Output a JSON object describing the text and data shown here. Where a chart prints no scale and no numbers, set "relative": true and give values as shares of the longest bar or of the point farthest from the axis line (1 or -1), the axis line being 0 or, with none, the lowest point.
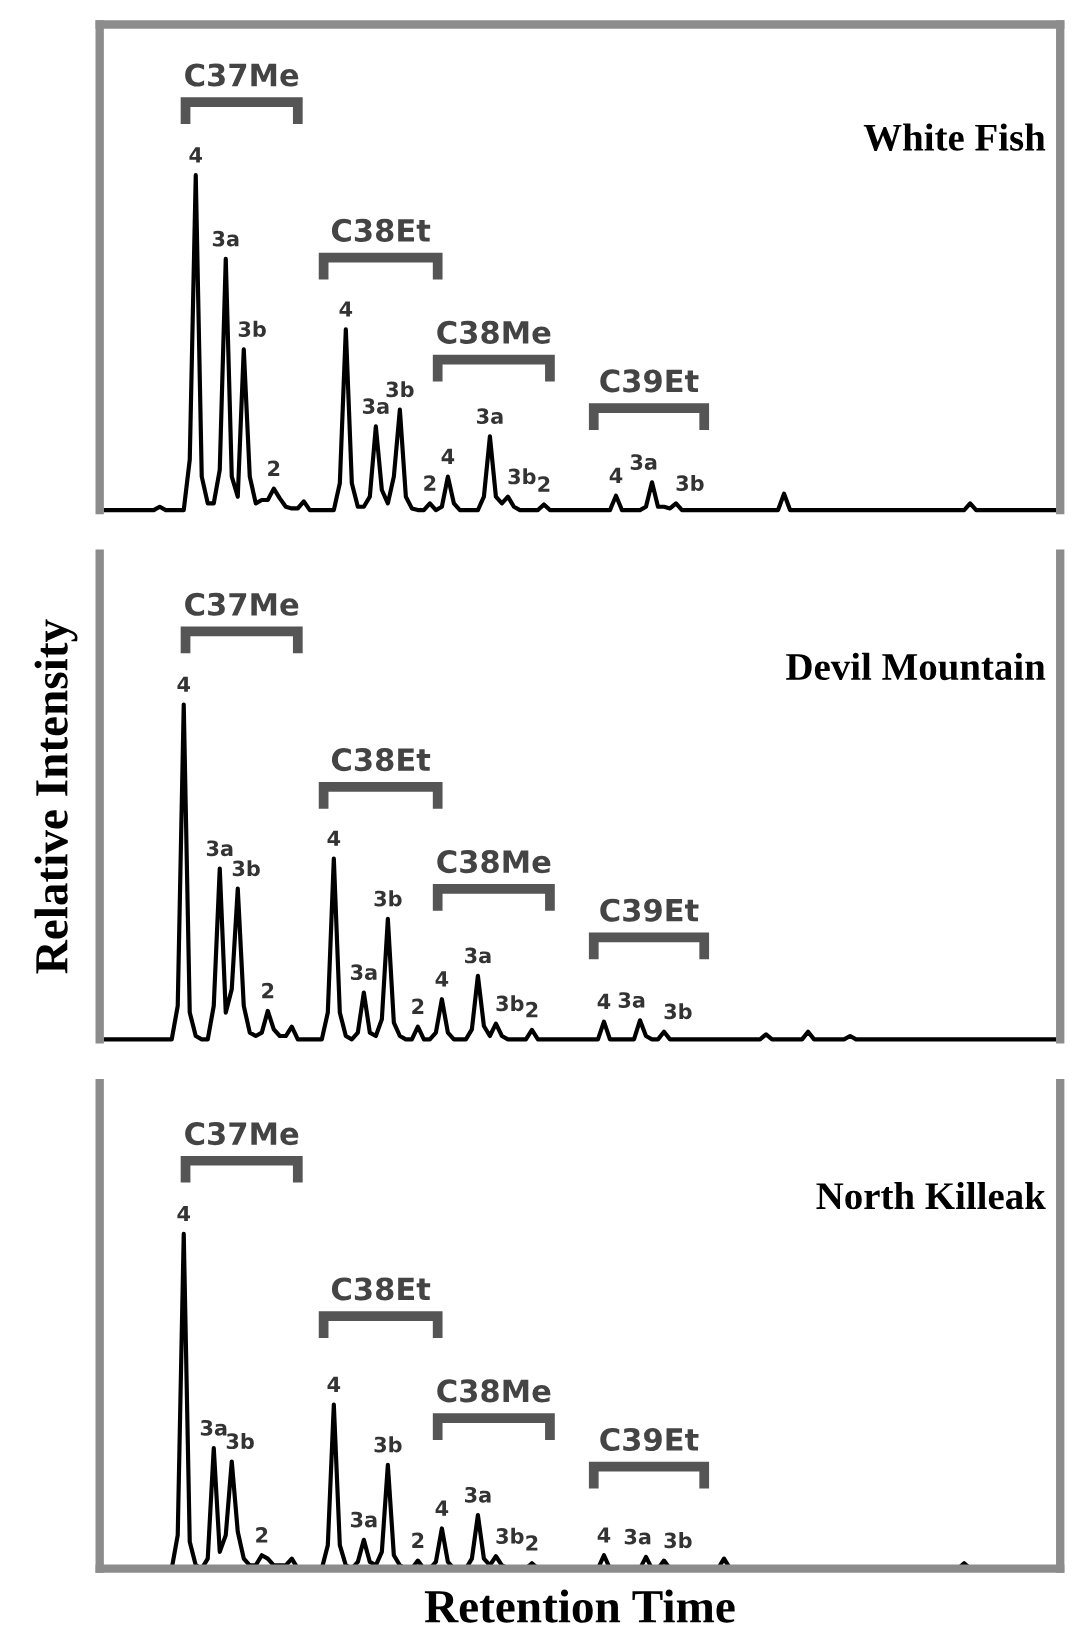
{
  "chart_data": [
    {
      "type": "line",
      "relative": true,
      "title": "White Fish",
      "categories": [
        null,
        null,
        null,
        null,
        null,
        null,
        null,
        null,
        null,
        null,
        null,
        null,
        null,
        null,
        null,
        null,
        null,
        null,
        null,
        null,
        null,
        null,
        null,
        null,
        null,
        null,
        null,
        null,
        null,
        null,
        null,
        null,
        null,
        null,
        null,
        null,
        null,
        null,
        null,
        null,
        null,
        null,
        null,
        null,
        null,
        null,
        null,
        null,
        null,
        null,
        null,
        null,
        null,
        null,
        null,
        null,
        null,
        null,
        null,
        null,
        null,
        null,
        null,
        null,
        null,
        null,
        null,
        null,
        null,
        null,
        null,
        null,
        null,
        null,
        null,
        null,
        null,
        null,
        null,
        null,
        null,
        null,
        null,
        null,
        null,
        null,
        null,
        null,
        null,
        null,
        null,
        null,
        null,
        null,
        null,
        null,
        null,
        null,
        null,
        null,
        null,
        null,
        null,
        null,
        null,
        null,
        null,
        null,
        null,
        null,
        null,
        null,
        null,
        null,
        null,
        null,
        null,
        null,
        null,
        null,
        null,
        null,
        null,
        null,
        null,
        null,
        null,
        null,
        null,
        null,
        null,
        null,
        null,
        null,
        null,
        null,
        null,
        null,
        null,
        null,
        null,
        null,
        null,
        null,
        null,
        null,
        null,
        null,
        null,
        null,
        null,
        null,
        null,
        null,
        null,
        null,
        null,
        null,
        null
      ],
      "series": [
        {
          "color": "#000000",
          "values": [
            0,
            0,
            0,
            0,
            0,
            0,
            0,
            0,
            0,
            0.01,
            0,
            0,
            0,
            0,
            0.15,
            1,
            0.1,
            0.02,
            0.02,
            0.12,
            0.75,
            0.1,
            0.04,
            0.48,
            0.1,
            0.02,
            0.03,
            0.03,
            0.064,
            0.035,
            0.01,
            0.005,
            0.005,
            0.026,
            0,
            0,
            0,
            0,
            0,
            0.08,
            0.54,
            0.08,
            0.01,
            0.01,
            0.04,
            0.25,
            0.06,
            0.02,
            0.1,
            0.3,
            0.04,
            0.005,
            0,
            0,
            0.02,
            0,
            0.01,
            0.1,
            0.02,
            0,
            0,
            0,
            0,
            0.04,
            0.22,
            0.04,
            0.02,
            0.04,
            0.01,
            0,
            0,
            0,
            0,
            0.017,
            0,
            0,
            0,
            0,
            0,
            0,
            0,
            0,
            0,
            0,
            0,
            0.043,
            0,
            0,
            0,
            0,
            0.01,
            0.083,
            0.01,
            0.01,
            0.005,
            0.02,
            0,
            0,
            0,
            0,
            0,
            0,
            0,
            0,
            0,
            0,
            0,
            0,
            0,
            0,
            0,
            0,
            0,
            0.049,
            0,
            0,
            0,
            0,
            0,
            0,
            0,
            0,
            0,
            0,
            0,
            0,
            0,
            0,
            0,
            0,
            0,
            0,
            0,
            0,
            0,
            0,
            0,
            0,
            0,
            0,
            0,
            0,
            0,
            0,
            0.02,
            0,
            0,
            0,
            0,
            0,
            0,
            0,
            0,
            0,
            0,
            0,
            0,
            0,
            0
          ]
        }
      ],
      "annotations": [
        "C37Me",
        "C38Et",
        "C38Me",
        "C39Et",
        "4",
        "3a",
        "3b",
        "2",
        "4",
        "3a",
        "3b",
        "2",
        "4",
        "3a",
        "3b",
        "2",
        "4",
        "3a",
        "3b"
      ]
    },
    {
      "type": "line",
      "relative": true,
      "title": "Devil Mountain",
      "ylabel": "Relative Intensity",
      "categories": [
        null,
        null,
        null,
        null,
        null,
        null,
        null,
        null,
        null,
        null,
        null,
        null,
        null,
        null,
        null,
        null,
        null,
        null,
        null,
        null,
        null,
        null,
        null,
        null,
        null,
        null,
        null,
        null,
        null,
        null,
        null,
        null,
        null,
        null,
        null,
        null,
        null,
        null,
        null,
        null,
        null,
        null,
        null,
        null,
        null,
        null,
        null,
        null,
        null,
        null,
        null,
        null,
        null,
        null,
        null,
        null,
        null,
        null,
        null,
        null,
        null,
        null,
        null,
        null,
        null,
        null,
        null,
        null,
        null,
        null,
        null,
        null,
        null,
        null,
        null,
        null,
        null,
        null,
        null,
        null,
        null,
        null,
        null,
        null,
        null,
        null,
        null,
        null,
        null,
        null,
        null,
        null,
        null,
        null,
        null,
        null,
        null,
        null,
        null,
        null,
        null,
        null,
        null,
        null,
        null,
        null,
        null,
        null,
        null,
        null,
        null,
        null,
        null,
        null,
        null,
        null,
        null,
        null,
        null,
        null,
        null,
        null,
        null,
        null,
        null,
        null,
        null,
        null,
        null,
        null,
        null,
        null,
        null,
        null,
        null,
        null,
        null,
        null,
        null,
        null,
        null,
        null,
        null,
        null,
        null,
        null,
        null,
        null,
        null,
        null,
        null,
        null,
        null,
        null,
        null,
        null,
        null,
        null,
        null
      ],
      "series": [
        {
          "color": "#000000",
          "values": [
            0,
            0,
            0,
            0,
            0,
            0,
            0,
            0,
            0,
            0,
            0,
            0,
            0.1,
            1,
            0.08,
            0.01,
            0,
            0,
            0.1,
            0.51,
            0.08,
            0.15,
            0.45,
            0.1,
            0.02,
            0.01,
            0.02,
            0.085,
            0.03,
            0.01,
            0.01,
            0.038,
            0,
            0,
            0,
            0,
            0,
            0.08,
            0.54,
            0.08,
            0.01,
            0,
            0.02,
            0.14,
            0.02,
            0.01,
            0.06,
            0.36,
            0.05,
            0.01,
            0,
            0,
            0.038,
            0,
            0,
            0.02,
            0.12,
            0.02,
            0,
            0,
            0,
            0.03,
            0.19,
            0.04,
            0.01,
            0.047,
            0.01,
            0,
            0,
            0,
            0,
            0.028,
            0,
            0,
            0,
            0,
            0,
            0,
            0,
            0,
            0,
            0,
            0,
            0.053,
            0,
            0,
            0,
            0,
            0,
            0.057,
            0.01,
            0,
            0,
            0.023,
            0,
            0,
            0,
            0,
            0,
            0,
            0,
            0,
            0,
            0,
            0,
            0,
            0,
            0,
            0,
            0,
            0.015,
            0,
            0,
            0,
            0,
            0,
            0,
            0.023,
            0,
            0,
            0,
            0,
            0,
            0,
            0.01,
            0,
            0,
            0,
            0,
            0,
            0,
            0,
            0,
            0,
            0,
            0,
            0,
            0,
            0,
            0,
            0,
            0,
            0,
            0,
            0,
            0,
            0,
            0,
            0,
            0,
            0,
            0,
            0,
            0,
            0,
            0,
            0,
            0,
            0
          ]
        }
      ],
      "annotations": [
        "C37Me",
        "C38Et",
        "C38Me",
        "C39Et",
        "4",
        "3a",
        "3b",
        "2",
        "4",
        "3a",
        "3b",
        "2",
        "4",
        "3a",
        "3b",
        "2",
        "4",
        "3a",
        "3b"
      ]
    },
    {
      "type": "line",
      "relative": true,
      "title": "North Killeak",
      "xlabel": "Retention Time",
      "categories": [
        null,
        null,
        null,
        null,
        null,
        null,
        null,
        null,
        null,
        null,
        null,
        null,
        null,
        null,
        null,
        null,
        null,
        null,
        null,
        null,
        null,
        null,
        null,
        null,
        null,
        null,
        null,
        null,
        null,
        null,
        null,
        null,
        null,
        null,
        null,
        null,
        null,
        null,
        null,
        null,
        null,
        null,
        null,
        null,
        null,
        null,
        null,
        null,
        null,
        null,
        null,
        null,
        null,
        null,
        null,
        null,
        null,
        null,
        null,
        null,
        null,
        null,
        null,
        null,
        null,
        null,
        null,
        null,
        null,
        null,
        null,
        null,
        null,
        null,
        null,
        null,
        null,
        null,
        null,
        null,
        null,
        null,
        null,
        null,
        null,
        null,
        null,
        null,
        null,
        null,
        null,
        null,
        null,
        null,
        null,
        null,
        null,
        null,
        null,
        null,
        null,
        null,
        null,
        null,
        null,
        null,
        null,
        null,
        null,
        null,
        null,
        null,
        null,
        null,
        null,
        null,
        null,
        null,
        null,
        null,
        null,
        null,
        null,
        null,
        null,
        null,
        null,
        null,
        null,
        null,
        null,
        null,
        null,
        null,
        null,
        null,
        null,
        null,
        null,
        null,
        null,
        null,
        null,
        null,
        null,
        null,
        null,
        null,
        null,
        null,
        null,
        null,
        null,
        null,
        null,
        null,
        null,
        null,
        null
      ],
      "series": [
        {
          "color": "#000000",
          "values": [
            0,
            0,
            0,
            0,
            0,
            0,
            0,
            0,
            0,
            0,
            0,
            0,
            0.1,
            1,
            0.08,
            0.01,
            0,
            0.03,
            0.36,
            0.05,
            0.1,
            0.32,
            0.11,
            0.03,
            0.01,
            0.01,
            0.04,
            0.03,
            0.01,
            0.01,
            0.01,
            0.03,
            0,
            0,
            0,
            0,
            0,
            0.07,
            0.49,
            0.07,
            0.01,
            0,
            0.02,
            0.086,
            0.02,
            0.01,
            0.05,
            0.31,
            0.04,
            0.01,
            0,
            0,
            0.024,
            0,
            0,
            0.02,
            0.12,
            0.02,
            0,
            0,
            0,
            0.03,
            0.16,
            0.03,
            0.01,
            0.037,
            0.01,
            0,
            0,
            0,
            0,
            0.016,
            0,
            0,
            0,
            0,
            0,
            0,
            0,
            0,
            0,
            0,
            0,
            0.04,
            0,
            0,
            0,
            0,
            0,
            0,
            0.035,
            0,
            0,
            0.024,
            0,
            0,
            0,
            0,
            0,
            0,
            0,
            0,
            0,
            0.03,
            0,
            0,
            0,
            0,
            0,
            0,
            0,
            0,
            0,
            0,
            0,
            0,
            0,
            0,
            0,
            0,
            0,
            0,
            0,
            0,
            0,
            0,
            0,
            0,
            0,
            0,
            0,
            0,
            0,
            0,
            0,
            0,
            0,
            0,
            0,
            0,
            0,
            0,
            0,
            0.016,
            0,
            0,
            0,
            0,
            0,
            0,
            0,
            0,
            0,
            0,
            0,
            0,
            0,
            0,
            0
          ]
        }
      ],
      "annotations": [
        "C37Me",
        "C38Et",
        "C38Me",
        "C39Et",
        "4",
        "3a",
        "3b",
        "2",
        "4",
        "3a",
        "3b",
        "2",
        "4",
        "3a",
        "3b",
        "2",
        "4",
        "3a",
        "3b"
      ]
    }
  ]
}
